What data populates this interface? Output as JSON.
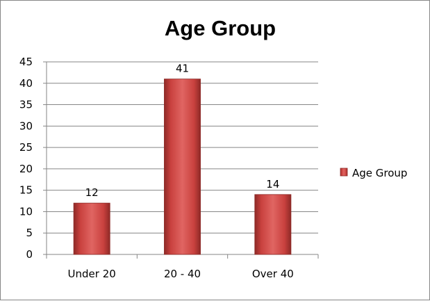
{
  "chart_data": {
    "type": "bar",
    "title": "Age Group",
    "xlabel": "",
    "ylabel": "",
    "categories": [
      "Under 20",
      "20 - 40",
      "Over 40"
    ],
    "series": [
      {
        "name": "Age Group",
        "values": [
          12,
          41,
          14
        ],
        "color": "#C0504D"
      }
    ],
    "ylim": [
      0,
      45
    ],
    "yticks": [
      0,
      5,
      10,
      15,
      20,
      25,
      30,
      35,
      40,
      45
    ],
    "ytick_labels": [
      "0",
      "5",
      "10",
      "15",
      "20",
      "25",
      "30",
      "35",
      "40",
      "45"
    ],
    "data_labels": [
      "12",
      "41",
      "14"
    ],
    "grid": true,
    "legend": {
      "position": "right",
      "entries": [
        "Age Group"
      ]
    }
  }
}
